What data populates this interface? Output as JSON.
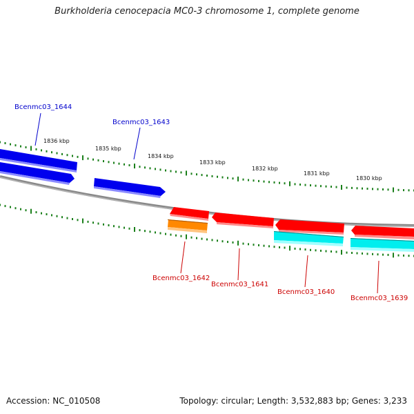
{
  "title": "Burkholderia cenocepacia MC0-3 chromosome 1, complete genome",
  "footer": {
    "accession": "Accession: NC_010508",
    "summary": "Topology: circular; Length: 3,532,883 bp; Genes: 3,233"
  },
  "colors": {
    "forward_label": "#0000cc",
    "reverse_label": "#cc0000",
    "tick": "#1a7f1a",
    "backbone": "#888888"
  },
  "scale_ticks": [
    {
      "label": "1836 kbp"
    },
    {
      "label": "1835 kbp"
    },
    {
      "label": "1834 kbp"
    },
    {
      "label": "1833 kbp"
    },
    {
      "label": "1832 kbp"
    },
    {
      "label": "1831 kbp"
    },
    {
      "label": "1830 kbp"
    }
  ],
  "genes_forward": [
    {
      "name": "Bcenmc03_1644",
      "color": "#0000ee"
    },
    {
      "name": "Bcenmc03_1643",
      "color": "#0000ee"
    }
  ],
  "genes_reverse": [
    {
      "name": "Bcenmc03_1642",
      "color": "#ff0000",
      "extra_color": "#ff8800"
    },
    {
      "name": "Bcenmc03_1641",
      "color": "#ff0000"
    },
    {
      "name": "Bcenmc03_1640",
      "color": "#ff0000",
      "extra_color": "#00eeee"
    },
    {
      "name": "Bcenmc03_1639",
      "color": "#ff0000",
      "extra_color": "#00eeee"
    }
  ]
}
